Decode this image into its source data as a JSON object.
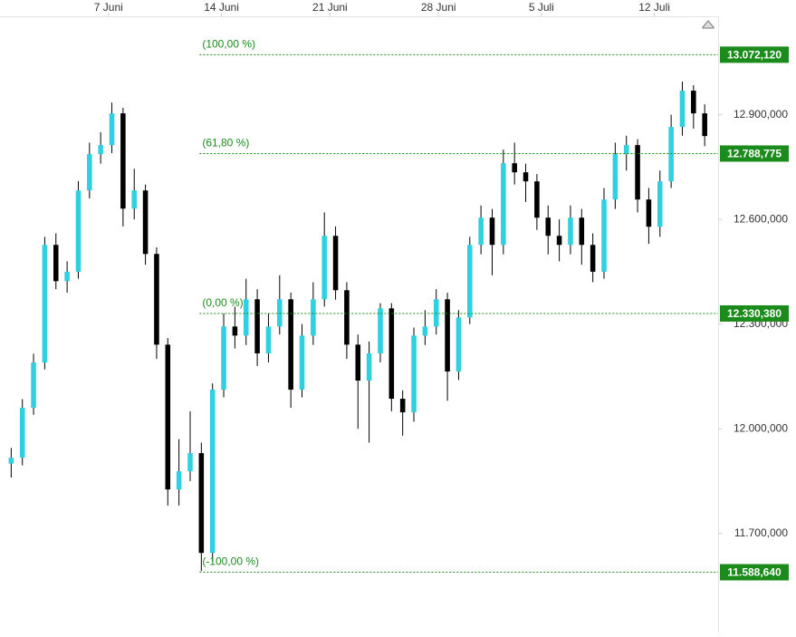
{
  "chart_data": {
    "type": "candlestick",
    "up_color": "#2fd0e2",
    "down_color": "#000000",
    "fib_color": "#1b8c1b",
    "xlim": [
      -1,
      63.2
    ],
    "xticks": [
      {
        "value": 8.7,
        "label": "7 Juni"
      },
      {
        "value": 18.8,
        "label": "14 Juni"
      },
      {
        "value": 28.5,
        "label": "21 Juni"
      },
      {
        "value": 38.2,
        "label": "28 Juni"
      },
      {
        "value": 47.4,
        "label": "5 Juli"
      },
      {
        "value": 57.5,
        "label": "12 Juli"
      }
    ],
    "ylim": [
      11416,
      13177
    ],
    "yticks": [
      {
        "value": 11700,
        "label": "11.700,000"
      },
      {
        "value": 12000,
        "label": "12.000,000"
      },
      {
        "value": 12300,
        "label": "12.300,000"
      },
      {
        "value": 12600,
        "label": "12.600,000"
      },
      {
        "value": 12900,
        "label": "12.900,000"
      }
    ],
    "open": [
      11900,
      11917,
      12060,
      12190,
      12527,
      12423,
      12450,
      12683,
      12787,
      12813,
      12904,
      12631,
      12683,
      12501,
      12241,
      11826,
      11878,
      11930,
      11644,
      12112,
      12293,
      12267,
      12371,
      12216,
      12293,
      12371,
      12112,
      12267,
      12371,
      12553,
      12397,
      12241,
      12138,
      12216,
      12345,
      12086,
      12047,
      12267,
      12293,
      12371,
      12164,
      12319,
      12527,
      12605,
      12527,
      12761,
      12735,
      12709,
      12605,
      12553,
      12527,
      12605,
      12527,
      12450,
      12657,
      12787,
      12813,
      12657,
      12579,
      12709,
      12865,
      12969,
      12904
    ],
    "high": [
      11945,
      12085,
      12215,
      12550,
      12560,
      12480,
      12710,
      12820,
      12850,
      12935,
      12920,
      12745,
      12700,
      12520,
      12260,
      11970,
      12050,
      11960,
      12130,
      12330,
      12350,
      12430,
      12400,
      12330,
      12440,
      12390,
      12300,
      12420,
      12620,
      12580,
      12420,
      12270,
      12250,
      12360,
      12360,
      12110,
      12290,
      12340,
      12400,
      12390,
      12340,
      12550,
      12640,
      12630,
      12800,
      12820,
      12760,
      12730,
      12640,
      12600,
      12640,
      12630,
      12560,
      12690,
      12820,
      12840,
      12830,
      12690,
      12740,
      12900,
      12995,
      12985,
      12930
    ],
    "low": [
      11860,
      11895,
      12040,
      12170,
      12400,
      12390,
      12430,
      12660,
      12760,
      12790,
      12580,
      12600,
      12470,
      12200,
      11780,
      11780,
      11850,
      11592,
      11620,
      12090,
      12230,
      12240,
      12180,
      12190,
      12270,
      12060,
      12090,
      12240,
      12350,
      12370,
      12200,
      12000,
      11960,
      12190,
      12050,
      11980,
      12020,
      12240,
      12270,
      12080,
      12140,
      12300,
      12500,
      12440,
      12500,
      12700,
      12650,
      12570,
      12500,
      12480,
      12500,
      12470,
      12420,
      12430,
      12630,
      12740,
      12620,
      12530,
      12550,
      12690,
      12840,
      12860,
      12810
    ],
    "close": [
      11917,
      12060,
      12190,
      12527,
      12423,
      12450,
      12683,
      12787,
      12813,
      12904,
      12631,
      12683,
      12501,
      12241,
      11826,
      11878,
      11930,
      11644,
      12112,
      12293,
      12267,
      12371,
      12216,
      12293,
      12371,
      12112,
      12267,
      12371,
      12553,
      12397,
      12241,
      12138,
      12216,
      12345,
      12086,
      12047,
      12267,
      12293,
      12371,
      12164,
      12319,
      12527,
      12605,
      12527,
      12761,
      12735,
      12709,
      12605,
      12553,
      12527,
      12605,
      12527,
      12450,
      12657,
      12787,
      12813,
      12657,
      12579,
      12709,
      12865,
      12969,
      12904,
      12839
    ],
    "fib_levels": [
      {
        "label": "(100,00 %)",
        "value": 13072.12,
        "value_label": "13.072,120"
      },
      {
        "label": "(61,80 %)",
        "value": 12788.775,
        "value_label": "12.788,775"
      },
      {
        "label": "(0,00 %)",
        "value": 12330.38,
        "value_label": "12.330,380"
      },
      {
        "label": "(-100,00 %)",
        "value": 11588.64,
        "value_label": "11.588,640"
      }
    ]
  }
}
